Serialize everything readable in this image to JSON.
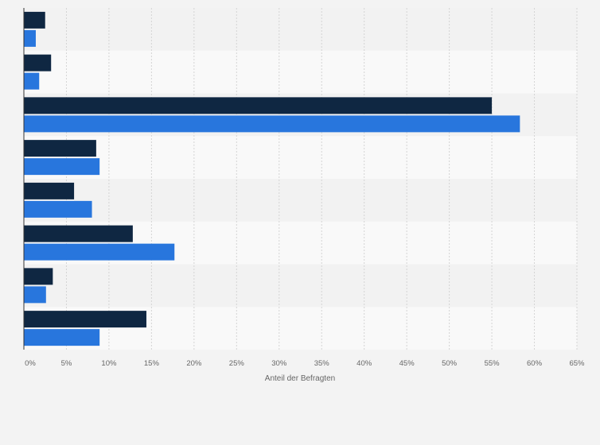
{
  "chart_data": {
    "type": "bar",
    "orientation": "horizontal",
    "xlabel": "Anteil der Befragten",
    "xlim": [
      0,
      65
    ],
    "x_ticks": [
      "0%",
      "5%",
      "10%",
      "15%",
      "20%",
      "25%",
      "30%",
      "35%",
      "40%",
      "45%",
      "50%",
      "55%",
      "60%",
      "65%"
    ],
    "grid": true,
    "categories": [
      "",
      "",
      "",
      "",
      "",
      "",
      "",
      ""
    ],
    "series": [
      {
        "color": "#0f2742",
        "values": [
          2.5,
          3.2,
          55.0,
          8.5,
          5.9,
          12.8,
          3.4,
          14.4
        ]
      },
      {
        "color": "#2876dd",
        "values": [
          1.4,
          1.8,
          58.3,
          8.9,
          8.0,
          17.7,
          2.6,
          8.9
        ]
      }
    ]
  }
}
